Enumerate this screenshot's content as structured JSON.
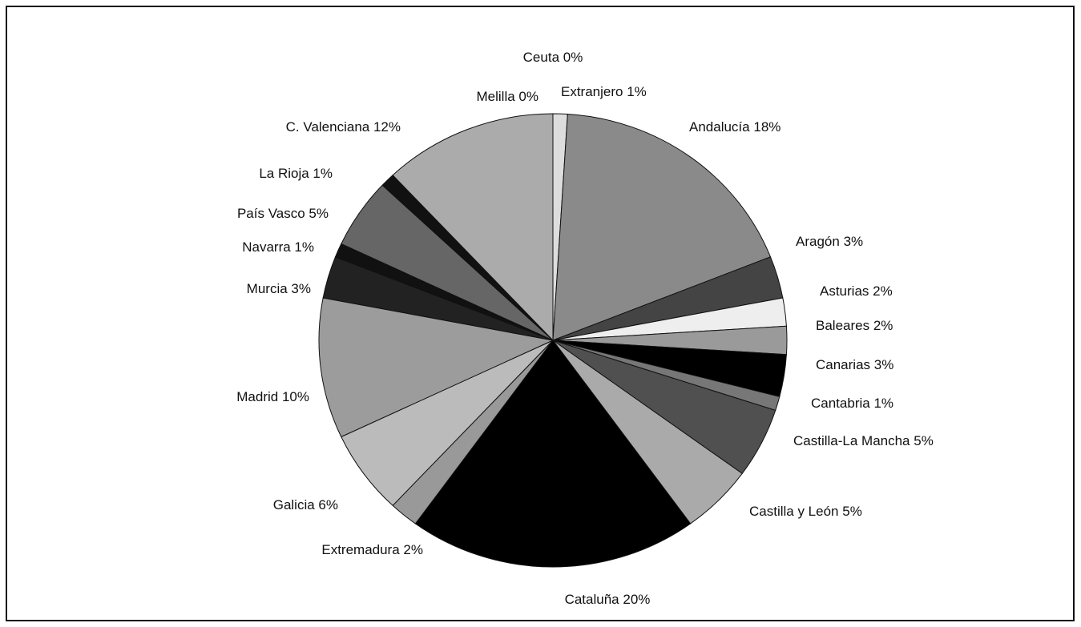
{
  "chart_data": {
    "type": "pie",
    "categories": [
      "Extranjero",
      "Andalucía",
      "Aragón",
      "Asturias",
      "Baleares",
      "Canarias",
      "Cantabria",
      "Castilla-La Mancha",
      "Castilla y León",
      "Cataluña",
      "Extremadura",
      "Galicia",
      "Madrid",
      "Murcia",
      "Navarra",
      "País Vasco",
      "La Rioja",
      "C. Valenciana",
      "Melilla",
      "Ceuta"
    ],
    "values": [
      1,
      18,
      3,
      2,
      2,
      3,
      1,
      5,
      5,
      20,
      2,
      6,
      10,
      3,
      1,
      5,
      1,
      12,
      0,
      0
    ],
    "value_labels": [
      "1%",
      "18%",
      "3%",
      "2%",
      "2%",
      "3%",
      "1%",
      "5%",
      "5%",
      "20%",
      "2%",
      "6%",
      "10%",
      "3%",
      "1%",
      "5%",
      "1%",
      "12%",
      "0%",
      "0%"
    ],
    "colors": [
      "#dddddd",
      "#8a8a8a",
      "#444444",
      "#eeeeee",
      "#9a9a9a",
      "#000000",
      "#777777",
      "#505050",
      "#aaaaaa",
      "#000000",
      "#999999",
      "#bbbbbb",
      "#9c9c9c",
      "#222222",
      "#111111",
      "#666666",
      "#111111",
      "#ababab",
      "#ffffff",
      "#ffffff"
    ]
  }
}
